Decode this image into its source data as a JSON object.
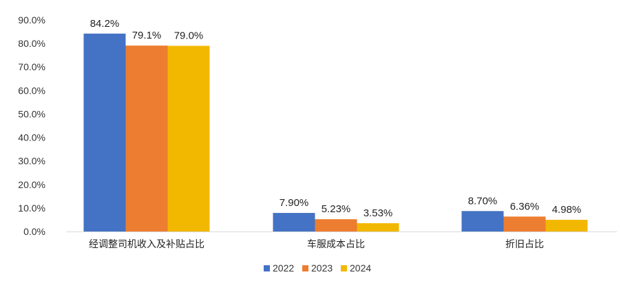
{
  "chart_data": {
    "type": "bar",
    "categories": [
      "经调整司机收入及补贴占比",
      "车服成本占比",
      "折旧占比"
    ],
    "series": [
      {
        "name": "2022",
        "color": "#4472C4",
        "values": [
          84.2,
          7.9,
          8.7
        ],
        "labels": [
          "84.2%",
          "7.90%",
          "8.70%"
        ]
      },
      {
        "name": "2023",
        "color": "#ED7D31",
        "values": [
          79.1,
          5.23,
          6.36
        ],
        "labels": [
          "79.1%",
          "5.23%",
          "6.36%"
        ]
      },
      {
        "name": "2024",
        "color": "#F2B800",
        "values": [
          79.0,
          3.53,
          4.98
        ],
        "labels": [
          "79.0%",
          "3.53%",
          "4.98%"
        ]
      }
    ],
    "ylim": [
      0,
      90
    ],
    "yticks": [
      0,
      10,
      20,
      30,
      40,
      50,
      60,
      70,
      80,
      90
    ],
    "ytick_labels": [
      "0.0%",
      "10.0%",
      "20.0%",
      "30.0%",
      "40.0%",
      "50.0%",
      "60.0%",
      "70.0%",
      "80.0%",
      "90.0%"
    ],
    "title": "",
    "xlabel": "",
    "ylabel": "",
    "grid": false,
    "legend_position": "bottom"
  }
}
